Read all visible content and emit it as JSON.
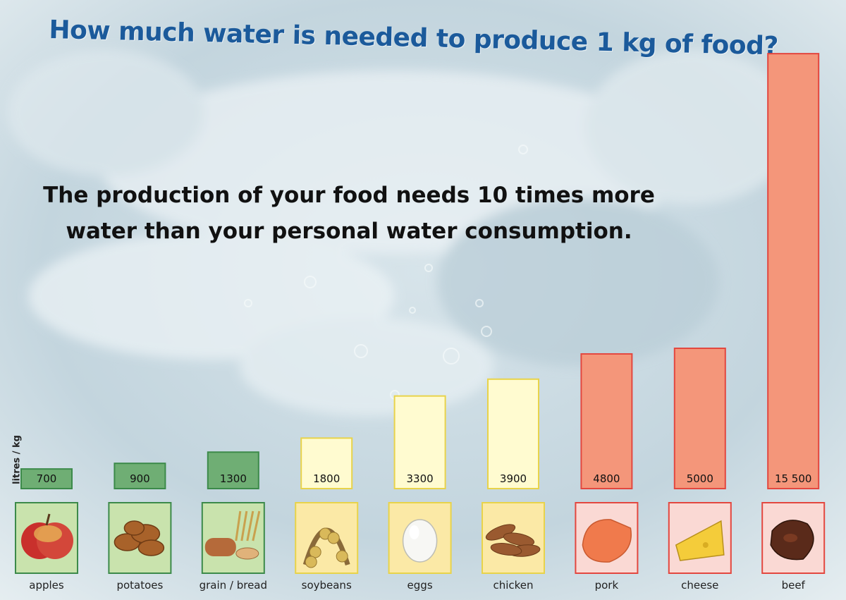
{
  "title": "How much water is needed to produce 1 kg of food?",
  "subtitle": "The production of your food needs 10 times more water than your personal water consumption.",
  "colors": {
    "low": "#6fae74",
    "low_border": "#3c8a4a",
    "low_tile": "#c9e3ad",
    "mid": "#fffbd0",
    "mid_border": "#e8d34a",
    "mid_tile": "#fbe9a6",
    "high": "#f4967a",
    "high_border": "#e3473f",
    "high_tile": "#fad9d4",
    "title": "#1b5a9b"
  },
  "chart_data": {
    "type": "bar",
    "title": "How much water is needed to produce 1 kg of food?",
    "ylabel": "litres / kg",
    "categories": [
      "apples",
      "potatoes",
      "grain / bread",
      "soybeans",
      "eggs",
      "chicken",
      "pork",
      "cheese",
      "beef"
    ],
    "values": [
      700,
      900,
      1300,
      1800,
      3300,
      3900,
      4800,
      5000,
      15500
    ],
    "value_labels": [
      "700",
      "900",
      "1300",
      "1800",
      "3300",
      "3900",
      "4800",
      "5000",
      "15 500"
    ],
    "groups": [
      "low",
      "low",
      "low",
      "mid",
      "mid",
      "mid",
      "high",
      "high",
      "high"
    ],
    "icons": [
      "apple-icon",
      "potatoes-icon",
      "bread-icon",
      "soybeans-icon",
      "egg-icon",
      "chicken-icon",
      "pork-icon",
      "cheese-icon",
      "beef-icon"
    ],
    "grid": false,
    "legend": "none"
  }
}
